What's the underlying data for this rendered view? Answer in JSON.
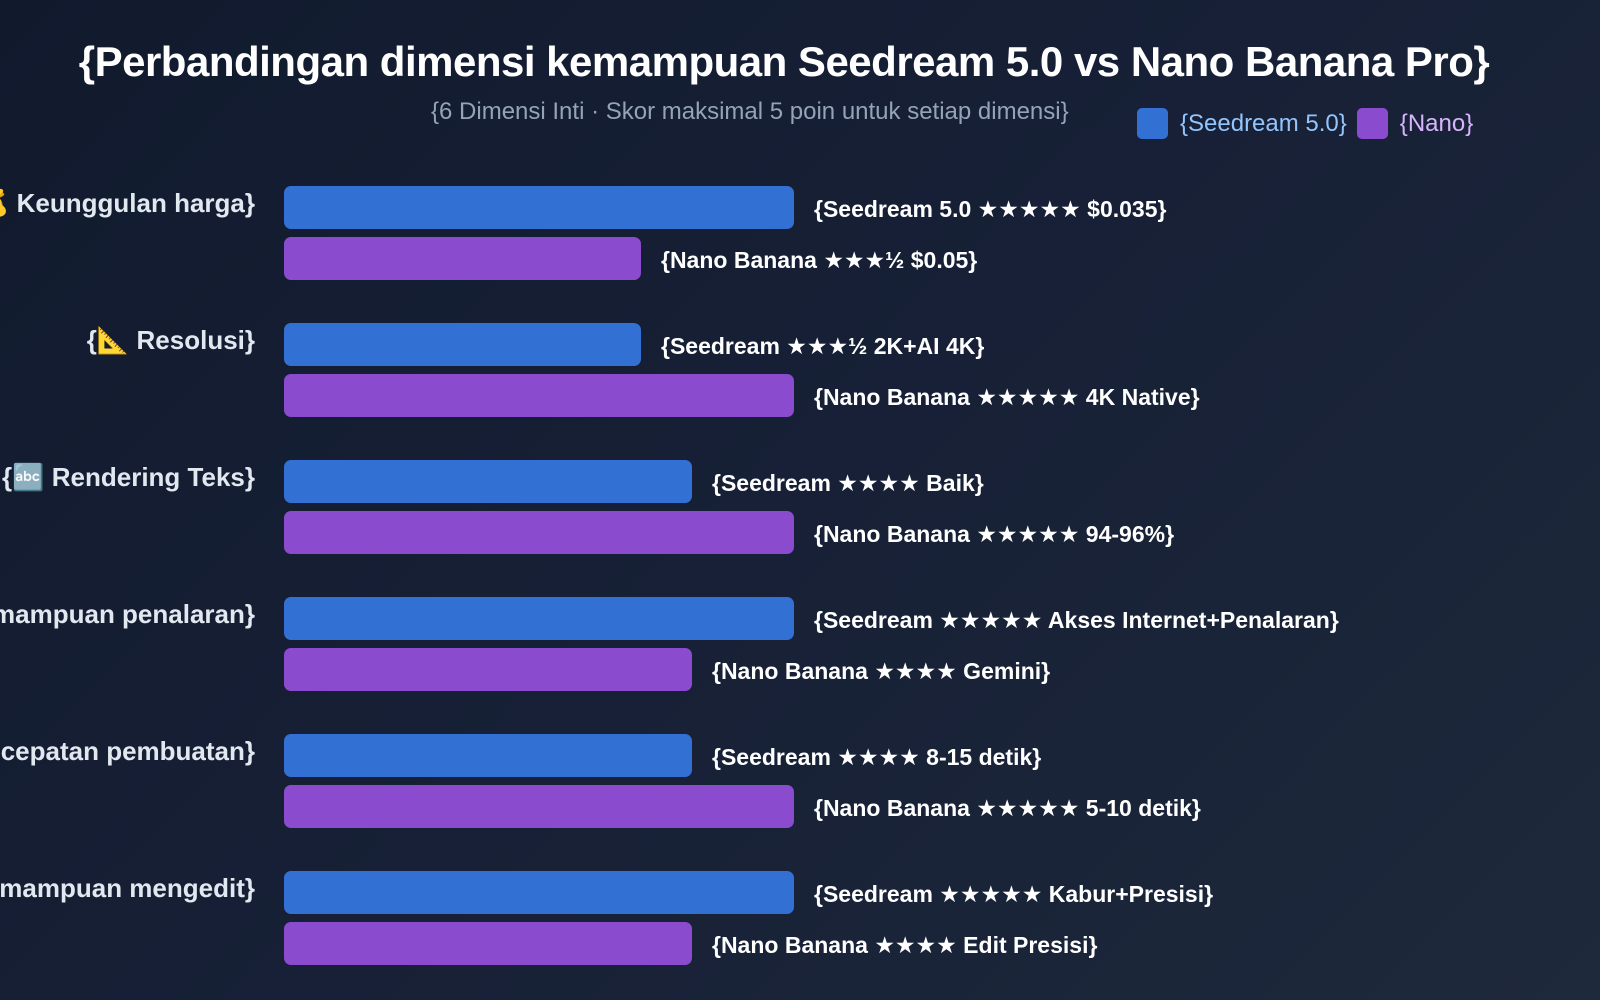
{
  "header": {
    "title": "{Perbandingan dimensi kemampuan Seedream 5.0 vs Nano Banana Pro}",
    "subtitle": "{6 Dimensi Inti · Skor maksimal 5 poin untuk setiap dimensi}"
  },
  "legend": [
    {
      "label": "{Seedream 5.0}",
      "color": "#3370d4",
      "text_color": "#93c5fd"
    },
    {
      "label": "{Nano}",
      "color": "#8b4bcf",
      "text_color": "#d8b4fe"
    }
  ],
  "colors": {
    "seedream": "#3370d4",
    "nano": "#8b4bcf",
    "background": "#111a2d"
  },
  "groups": [
    {
      "label": "{💰 Keunggulan harga}",
      "a_text": "{Seedream 5.0 ★★★★★ $0.035}",
      "b_text": "{Nano Banana ★★★½ $0.05}"
    },
    {
      "label": "{📐 Resolusi}",
      "a_text": "{Seedream ★★★½ 2K+AI 4K}",
      "b_text": "{Nano Banana ★★★★★ 4K Native}"
    },
    {
      "label": "{🔤 Rendering Teks}",
      "a_text": "{Seedream ★★★★ Baik}",
      "b_text": "{Nano Banana ★★★★★ 94-96%}"
    },
    {
      "label": "{🧠 Kemampuan penalaran}",
      "a_text": "{Seedream ★★★★★ Akses Internet+Penalaran}",
      "b_text": "{Nano Banana ★★★★ Gemini}"
    },
    {
      "label": "{⚡ Kecepatan pembuatan}",
      "a_text": "{Seedream ★★★★ 8-15 detik}",
      "b_text": "{Nano Banana ★★★★★ 5-10 detik}"
    },
    {
      "label": "{✏️ Kemampuan mengedit}",
      "a_text": "{Seedream ★★★★★ Kabur+Presisi}",
      "b_text": "{Nano Banana ★★★★ Edit Presisi}"
    }
  ],
  "chart_data": {
    "type": "bar",
    "orientation": "horizontal",
    "title": "{Perbandingan dimensi kemampuan Seedream 5.0 vs Nano Banana Pro}",
    "subtitle": "{6 Dimensi Inti · Skor maksimal 5 poin untuk setiap dimensi}",
    "categories": [
      "{Keunggulan harga}",
      "{Resolusi}",
      "{Rendering Teks}",
      "{Kemampuan penalaran}",
      "{Kecepatan pembuatan}",
      "{Kemampuan mengedit}"
    ],
    "series": [
      {
        "name": "{Seedream 5.0}",
        "values": [
          5,
          3.5,
          4,
          5,
          4,
          5
        ]
      },
      {
        "name": "{Nano}",
        "values": [
          3.5,
          5,
          5,
          4,
          5,
          4
        ]
      }
    ],
    "xlim": [
      0,
      5
    ],
    "grid": false,
    "legend_position": "top-right"
  }
}
